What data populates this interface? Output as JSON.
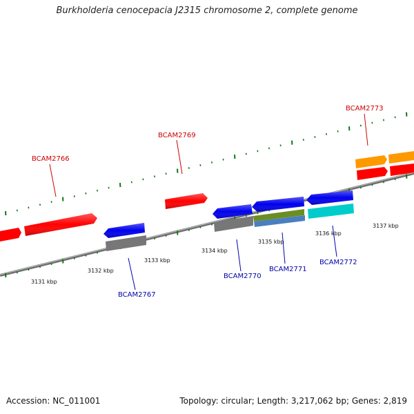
{
  "title": "Burkholderia cenocepacia J2315 chromosome 2, complete genome",
  "footer": {
    "accession": "Accession: NC_011001",
    "summary": "Topology: circular; Length: 3,217,062 bp; Genes: 2,819"
  },
  "colors": {
    "forward_label": "#cc0000",
    "reverse_label": "#0000aa",
    "tick": "#117711",
    "backbone": "#888888"
  },
  "ticks": [
    {
      "label": "3131 kbp"
    },
    {
      "label": "3132 kbp"
    },
    {
      "label": "3133 kbp"
    },
    {
      "label": "3134 kbp"
    },
    {
      "label": "3135 kbp"
    },
    {
      "label": "3136 kbp"
    },
    {
      "label": "3137 kbp"
    }
  ],
  "genes": [
    {
      "label": "BCAM2766",
      "strand": "forward",
      "color": "#ff0000"
    },
    {
      "label": "BCAM2767",
      "strand": "reverse",
      "color": "#0000ee"
    },
    {
      "label": "BCAM2769",
      "strand": "forward",
      "color": "#ff0000"
    },
    {
      "label": "BCAM2770",
      "strand": "reverse",
      "color": "#0000ee"
    },
    {
      "label": "BCAM2771",
      "strand": "reverse",
      "color": "#0000ee"
    },
    {
      "label": "BCAM2772",
      "strand": "reverse",
      "color": "#0000ee"
    },
    {
      "label": "BCAM2773",
      "strand": "forward",
      "color": "#ff0000"
    }
  ],
  "feature_colors": {
    "gene_forward": "#ff0000",
    "gene_reverse": "#0000ee",
    "cds_grey": "#777777",
    "cds_olive": "#6b8e23",
    "cds_steel": "#4a7fbf",
    "cds_cyan": "#00cccc",
    "cds_orange": "#ff9900"
  }
}
